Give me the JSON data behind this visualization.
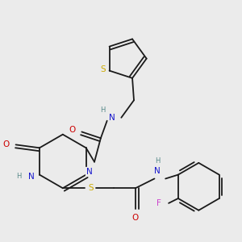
{
  "bg_color": "#ebebeb",
  "bond_color": "#1a1a1a",
  "atom_colors": {
    "N": "#1414cc",
    "O": "#cc0000",
    "S": "#ccaa00",
    "F": "#cc44cc",
    "H": "#558888",
    "C": "#1a1a1a"
  },
  "font_size": 7.5,
  "figsize": [
    3.0,
    3.0
  ],
  "dpi": 100
}
